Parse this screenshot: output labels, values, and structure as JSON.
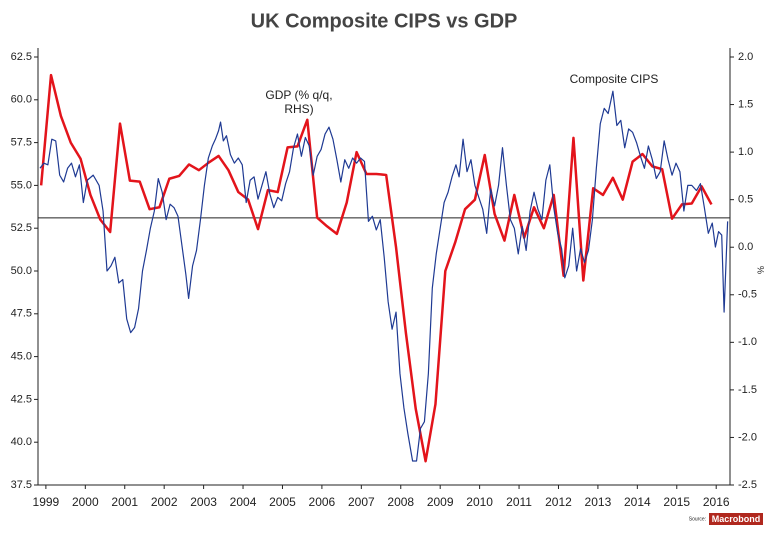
{
  "chart_data": {
    "type": "line",
    "title": "UK Composite CIPS vs GDP",
    "y2_label": "%",
    "annotations": [
      "GDP (% q/q, RHS)",
      "Composite CIPS"
    ],
    "source": "Source:",
    "source_logo": "Macrobond",
    "xlim": [
      1999.3,
      2016.85
    ],
    "xticks": [
      {
        "value": 1999.5,
        "label": "1999"
      },
      {
        "value": 2000.5,
        "label": "2000"
      },
      {
        "value": 2001.5,
        "label": "2001"
      },
      {
        "value": 2002.5,
        "label": "2002"
      },
      {
        "value": 2003.5,
        "label": "2003"
      },
      {
        "value": 2004.5,
        "label": "2004"
      },
      {
        "value": 2005.5,
        "label": "2005"
      },
      {
        "value": 2006.5,
        "label": "2006"
      },
      {
        "value": 2007.5,
        "label": "2007"
      },
      {
        "value": 2008.5,
        "label": "2008"
      },
      {
        "value": 2009.5,
        "label": "2009"
      },
      {
        "value": 2010.5,
        "label": "2010"
      },
      {
        "value": 2011.5,
        "label": "2011"
      },
      {
        "value": 2012.5,
        "label": "2012"
      },
      {
        "value": 2013.5,
        "label": "2013"
      },
      {
        "value": 2014.5,
        "label": "2014"
      },
      {
        "value": 2015.5,
        "label": "2015"
      },
      {
        "value": 2016.5,
        "label": "2016"
      }
    ],
    "ylim": [
      37.5,
      62.5
    ],
    "yticks": [
      37.5,
      {
        "value": 40,
        "label": "40.0"
      },
      42.5,
      {
        "value": 45,
        "label": "45.0"
      },
      47.5,
      {
        "value": 50,
        "label": "50.0"
      },
      52.5,
      {
        "value": 55,
        "label": "55.0"
      },
      57.5,
      {
        "value": 60,
        "label": "60.0"
      },
      62.5
    ],
    "y2lim": [
      -2.5,
      2.0
    ],
    "y2ticks": [
      -2.5,
      {
        "value": -2,
        "label": "-2.0"
      },
      -1.5,
      {
        "value": -1,
        "label": "-1.0"
      },
      -0.5,
      {
        "value": 0,
        "label": "0.0"
      },
      0.5,
      {
        "value": 1,
        "label": "1.0"
      },
      1.5,
      {
        "value": 2,
        "label": "2.0"
      }
    ],
    "reference_line": 53.1,
    "series": [
      {
        "name": "Composite CIPS",
        "color": "#1f3a93",
        "x": [
          1999.35,
          1999.45,
          1999.55,
          1999.65,
          1999.75,
          1999.85,
          1999.95,
          2000.05,
          2000.15,
          2000.25,
          2000.35,
          2000.45,
          2000.55,
          2000.7,
          2000.85,
          2000.95,
          2001.05,
          2001.15,
          2001.25,
          2001.35,
          2001.45,
          2001.55,
          2001.65,
          2001.75,
          2001.85,
          2001.95,
          2002.05,
          2002.15,
          2002.25,
          2002.35,
          2002.45,
          2002.55,
          2002.65,
          2002.75,
          2002.85,
          2002.95,
          2003.05,
          2003.12,
          2003.22,
          2003.32,
          2003.42,
          2003.52,
          2003.62,
          2003.72,
          2003.8,
          2003.88,
          2003.93,
          2004.0,
          2004.08,
          2004.18,
          2004.28,
          2004.38,
          2004.48,
          2004.58,
          2004.68,
          2004.78,
          2004.88,
          2004.98,
          2005.08,
          2005.18,
          2005.28,
          2005.38,
          2005.48,
          2005.58,
          2005.68,
          2005.78,
          2005.88,
          2005.98,
          2006.08,
          2006.18,
          2006.28,
          2006.38,
          2006.48,
          2006.58,
          2006.68,
          2006.78,
          2006.88,
          2006.98,
          2007.08,
          2007.18,
          2007.28,
          2007.38,
          2007.48,
          2007.58,
          2007.68,
          2007.78,
          2007.88,
          2007.98,
          2008.08,
          2008.18,
          2008.28,
          2008.38,
          2008.48,
          2008.58,
          2008.68,
          2008.8,
          2008.9,
          2009.0,
          2009.1,
          2009.2,
          2009.3,
          2009.4,
          2009.5,
          2009.6,
          2009.7,
          2009.8,
          2009.9,
          2009.98,
          2010.08,
          2010.18,
          2010.28,
          2010.38,
          2010.48,
          2010.58,
          2010.68,
          2010.78,
          2010.88,
          2010.98,
          2011.08,
          2011.18,
          2011.28,
          2011.38,
          2011.48,
          2011.58,
          2011.68,
          2011.78,
          2011.88,
          2011.98,
          2012.08,
          2012.18,
          2012.28,
          2012.38,
          2012.48,
          2012.58,
          2012.66,
          2012.76,
          2012.86,
          2012.96,
          2013.06,
          2013.16,
          2013.26,
          2013.36,
          2013.46,
          2013.56,
          2013.66,
          2013.76,
          2013.88,
          2013.98,
          2014.08,
          2014.18,
          2014.28,
          2014.38,
          2014.48,
          2014.58,
          2014.68,
          2014.78,
          2014.88,
          2014.98,
          2015.08,
          2015.18,
          2015.28,
          2015.38,
          2015.48,
          2015.58,
          2015.68,
          2015.78,
          2015.88,
          2016.0,
          2016.1,
          2016.2,
          2016.3,
          2016.4,
          2016.48,
          2016.56,
          2016.64,
          2016.7,
          2016.79
        ],
        "values": [
          56.0,
          56.3,
          56.2,
          57.7,
          57.6,
          55.6,
          55.2,
          56.0,
          56.3,
          55.5,
          56.2,
          54.0,
          55.3,
          55.6,
          55.0,
          53.5,
          50.0,
          50.3,
          50.8,
          49.3,
          49.5,
          47.2,
          46.4,
          46.7,
          47.8,
          50.0,
          51.2,
          52.5,
          53.5,
          55.4,
          54.6,
          53.0,
          53.9,
          53.7,
          53.2,
          51.5,
          49.8,
          48.4,
          50.3,
          51.2,
          53.0,
          55.0,
          56.6,
          57.3,
          57.7,
          58.2,
          58.7,
          57.6,
          57.9,
          56.8,
          56.3,
          56.6,
          56.2,
          54.0,
          55.3,
          55.5,
          54.2,
          55.0,
          55.8,
          54.5,
          53.7,
          54.3,
          54.1,
          55.1,
          55.8,
          57.2,
          58.0,
          56.7,
          57.8,
          57.3,
          55.6,
          56.7,
          57.1,
          58.0,
          58.4,
          57.7,
          56.5,
          55.2,
          56.5,
          56.0,
          56.6,
          56.3,
          56.6,
          56.4,
          52.9,
          53.2,
          52.4,
          53.0,
          50.8,
          48.2,
          46.6,
          47.6,
          44.0,
          42.0,
          40.5,
          38.9,
          38.9,
          40.8,
          41.2,
          44.0,
          49.0,
          51.0,
          52.5,
          54.0,
          54.6,
          55.5,
          56.2,
          55.5,
          57.7,
          55.8,
          56.5,
          55.0,
          54.3,
          53.6,
          52.2,
          54.8,
          53.8,
          55.0,
          57.2,
          55.0,
          53.0,
          52.5,
          51.0,
          52.6,
          51.2,
          53.5,
          54.6,
          53.6,
          53.0,
          55.3,
          56.2,
          53.7,
          52.2,
          51.3,
          49.6,
          50.3,
          52.5,
          50.0,
          51.3,
          50.5,
          51.2,
          53.0,
          56.0,
          58.6,
          59.5,
          59.2,
          60.5,
          58.5,
          58.8,
          57.2,
          58.3,
          58.1,
          57.5,
          56.7,
          56.0,
          57.3,
          56.5,
          55.4,
          55.8,
          57.6,
          56.5,
          55.6,
          56.3,
          55.8,
          53.5,
          55.0,
          55.0,
          54.7,
          55.1,
          53.7,
          52.2,
          52.8,
          51.4,
          52.3,
          52.1,
          47.6,
          52.9
        ]
      },
      {
        "name": "GDP",
        "color": "#e3141b",
        "axis": "y2",
        "x": [
          1999.38,
          1999.63,
          1999.88,
          2000.13,
          2000.38,
          2000.63,
          2000.88,
          2001.13,
          2001.38,
          2001.63,
          2001.88,
          2002.13,
          2002.38,
          2002.63,
          2002.88,
          2003.13,
          2003.38,
          2003.63,
          2003.88,
          2004.13,
          2004.38,
          2004.63,
          2004.88,
          2005.13,
          2005.38,
          2005.63,
          2005.88,
          2006.13,
          2006.38,
          2006.63,
          2006.88,
          2007.13,
          2007.38,
          2007.63,
          2007.88,
          2008.13,
          2008.38,
          2008.63,
          2008.88,
          2009.13,
          2009.38,
          2009.63,
          2009.88,
          2010.13,
          2010.38,
          2010.63,
          2010.88,
          2011.13,
          2011.38,
          2011.63,
          2011.88,
          2012.13,
          2012.38,
          2012.63,
          2012.88,
          2013.13,
          2013.38,
          2013.63,
          2013.88,
          2014.13,
          2014.38,
          2014.63,
          2014.88,
          2015.13,
          2015.38,
          2015.63,
          2015.88,
          2016.13,
          2016.38
        ],
        "values": [
          0.65,
          1.81,
          1.38,
          1.1,
          0.93,
          0.55,
          0.29,
          0.16,
          1.3,
          0.7,
          0.69,
          0.4,
          0.42,
          0.72,
          0.75,
          0.87,
          0.81,
          0.89,
          0.96,
          0.81,
          0.58,
          0.5,
          0.19,
          0.6,
          0.58,
          1.05,
          1.06,
          1.34,
          0.31,
          0.22,
          0.14,
          0.47,
          1.0,
          0.77,
          0.77,
          0.76,
          0.0,
          -0.9,
          -1.7,
          -2.25,
          -1.65,
          -0.25,
          0.05,
          0.4,
          0.5,
          0.97,
          0.35,
          0.07,
          0.55,
          0.1,
          0.42,
          0.2,
          0.55,
          -0.3,
          1.15,
          -0.35,
          0.62,
          0.55,
          0.73,
          0.5,
          0.9,
          0.98,
          0.85,
          0.82,
          0.3,
          0.45,
          0.46,
          0.64,
          0.45
        ]
      }
    ]
  }
}
